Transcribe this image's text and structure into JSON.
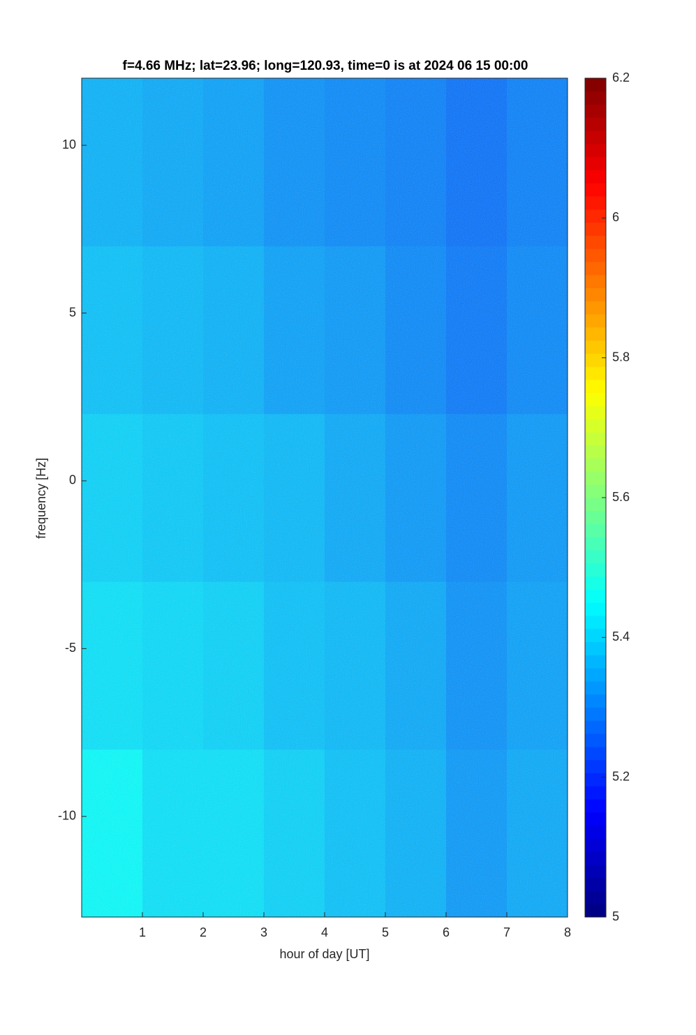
{
  "chart_data": {
    "type": "heatmap",
    "title": "f=4.66 MHz;  lat=23.96; long=120.93, time=0 is at 2024 06 15 00:00",
    "xlabel": "hour of day [UT]",
    "ylabel": "frequency [Hz]",
    "x": [
      0.5,
      1.5,
      2.5,
      3.5,
      4.5,
      5.5,
      6.5,
      7.5
    ],
    "y": [
      -10.5,
      -5.5,
      -0.5,
      4.5,
      9.5
    ],
    "values": [
      [
        5.45,
        5.42,
        5.42,
        5.4,
        5.38,
        5.36,
        5.33,
        5.35
      ],
      [
        5.42,
        5.41,
        5.4,
        5.38,
        5.37,
        5.35,
        5.32,
        5.34
      ],
      [
        5.4,
        5.39,
        5.38,
        5.37,
        5.35,
        5.33,
        5.31,
        5.33
      ],
      [
        5.38,
        5.37,
        5.36,
        5.34,
        5.33,
        5.31,
        5.29,
        5.31
      ],
      [
        5.36,
        5.35,
        5.34,
        5.32,
        5.31,
        5.3,
        5.28,
        5.3
      ]
    ],
    "xlim": [
      0,
      8
    ],
    "xticks": [
      1,
      2,
      3,
      4,
      5,
      6,
      7,
      8
    ],
    "ylim": [
      -13,
      12
    ],
    "yticks": [
      -10,
      -5,
      0,
      5,
      10
    ],
    "clim": [
      5,
      6.2
    ],
    "cticks": [
      5,
      5.2,
      5.4,
      5.6,
      5.8,
      6,
      6.2
    ],
    "colormap": "jet"
  }
}
